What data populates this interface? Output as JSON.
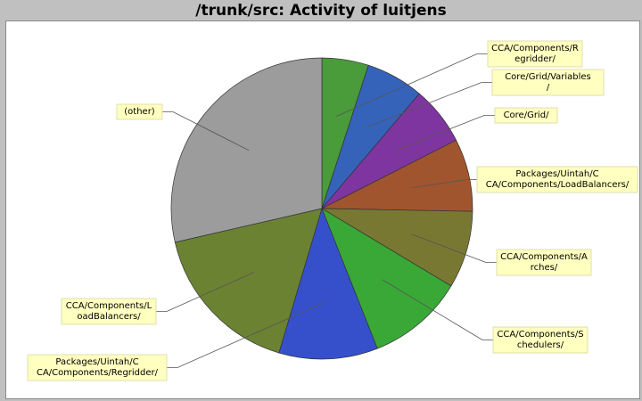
{
  "chart_data": {
    "type": "pie",
    "title": "/trunk/src: Activity of luitjens",
    "slices": [
      {
        "label": "CCA/Components/Regridder/",
        "label_lines": [
          "CCA/Components/R",
          "egridder/"
        ],
        "value": 5.0,
        "color": "#4a9b3a"
      },
      {
        "label": "Core/Grid/Variables/",
        "label_lines": [
          "Core/Grid/Variables",
          "/"
        ],
        "value": 6.2,
        "color": "#3563b9"
      },
      {
        "label": "Core/Grid/",
        "label_lines": [
          "Core/Grid/"
        ],
        "value": 6.3,
        "color": "#7f35a0"
      },
      {
        "label": "Packages/Uintah/CCA/Components/LoadBalancers/",
        "label_lines": [
          "Packages/Uintah/C",
          "CA/Components/LoadBalancers/"
        ],
        "value": 7.8,
        "color": "#a0552f"
      },
      {
        "label": "CCA/Components/Arches/",
        "label_lines": [
          "CCA/Components/A",
          "rches/"
        ],
        "value": 8.3,
        "color": "#787833"
      },
      {
        "label": "CCA/Components/Schedulers/",
        "label_lines": [
          "CCA/Components/S",
          "chedulers/"
        ],
        "value": 10.4,
        "color": "#3aa836"
      },
      {
        "label": "Packages/Uintah/CCA/Components/Regridder/",
        "label_lines": [
          "Packages/Uintah/C",
          "CA/Components/Regridder/"
        ],
        "value": 10.6,
        "color": "#3650cc"
      },
      {
        "label": "CCA/Components/LoadBalancers/",
        "label_lines": [
          "CCA/Components/L",
          "oadBalancers/"
        ],
        "value": 16.8,
        "color": "#6b8233"
      },
      {
        "label": "(other)",
        "label_lines": [
          "(other)"
        ],
        "value": 28.6,
        "color": "#9c9c9c"
      }
    ]
  }
}
